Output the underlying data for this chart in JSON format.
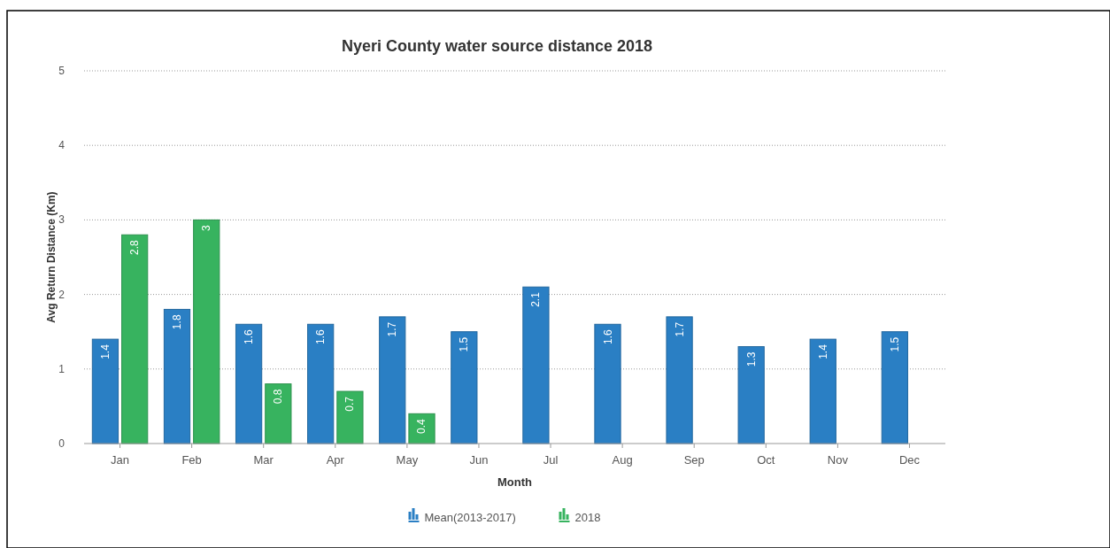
{
  "chart_data": {
    "type": "bar",
    "title": "Nyeri County water source distance 2018",
    "xlabel": "Month",
    "ylabel": "Avg Return Distance (Km)",
    "categories": [
      "Jan",
      "Feb",
      "Mar",
      "Apr",
      "May",
      "Jun",
      "Jul",
      "Aug",
      "Sep",
      "Oct",
      "Nov",
      "Dec"
    ],
    "series": [
      {
        "name": "Mean(2013-2017)",
        "color": "#2a7fc4",
        "values": [
          1.4,
          1.8,
          1.6,
          1.6,
          1.7,
          1.5,
          2.1,
          1.6,
          1.7,
          1.3,
          1.4,
          1.5
        ]
      },
      {
        "name": "2018",
        "color": "#37b35f",
        "values": [
          2.8,
          3,
          0.8,
          0.7,
          0.4,
          null,
          null,
          null,
          null,
          null,
          null,
          null
        ]
      }
    ],
    "ylim": [
      0,
      5
    ],
    "yticks": [
      0,
      1,
      2,
      3,
      4,
      5
    ],
    "grid": "y",
    "legend": "bottom",
    "data_labels": true
  }
}
